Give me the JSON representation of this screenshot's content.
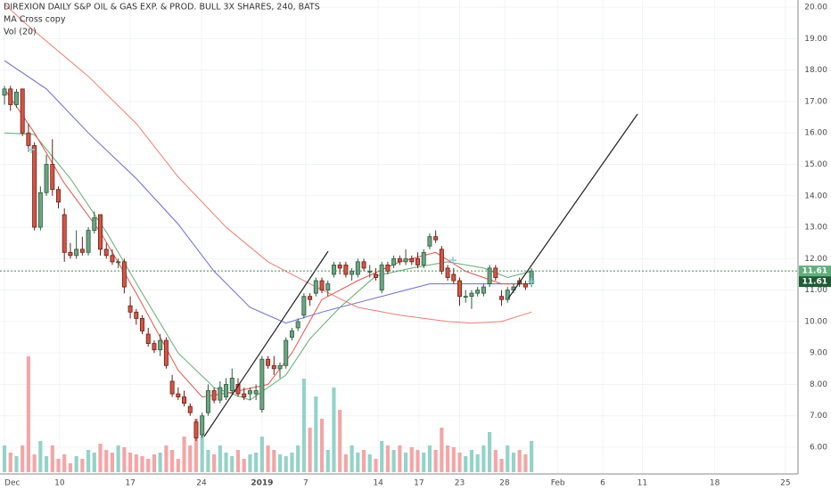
{
  "chart_data": {
    "type": "candlestick",
    "title": "DIREXION DAILY S&P OIL & GAS EXP. & PROD. BULL 3X SHARES, 240, BATS",
    "indicators": [
      "MA Cross copy",
      "Vol (20)"
    ],
    "xlim": [
      -0.75,
      132.5
    ],
    "xticks": [
      {
        "value": 0,
        "label": "Dec"
      },
      {
        "value": 9.2,
        "label": "10"
      },
      {
        "value": 21,
        "label": "17"
      },
      {
        "value": 32.9,
        "label": "24"
      },
      {
        "value": 43,
        "label": "2019"
      },
      {
        "value": 50.3,
        "label": "7"
      },
      {
        "value": 62.4,
        "label": "14"
      },
      {
        "value": 69.2,
        "label": "17"
      },
      {
        "value": 76,
        "label": "23"
      },
      {
        "value": 83.5,
        "label": "28"
      },
      {
        "value": 92.4,
        "label": "Feb"
      },
      {
        "value": 99.9,
        "label": "6"
      },
      {
        "value": 106.5,
        "label": "11"
      },
      {
        "value": 118.6,
        "label": "18"
      },
      {
        "value": 130.4,
        "label": "25"
      }
    ],
    "ylim": [
      5.15,
      20.23
    ],
    "yticks": [
      {
        "value": 6,
        "label": "6.00"
      },
      {
        "value": 7,
        "label": "7.00"
      },
      {
        "value": 8,
        "label": "8.00"
      },
      {
        "value": 9,
        "label": "9.00"
      },
      {
        "value": 10,
        "label": "10.00"
      },
      {
        "value": 11,
        "label": "11.00"
      },
      {
        "value": 12,
        "label": "12.00"
      },
      {
        "value": 13,
        "label": "13.00"
      },
      {
        "value": 14,
        "label": "14.00"
      },
      {
        "value": 15,
        "label": "15.00"
      },
      {
        "value": 16,
        "label": "16.00"
      },
      {
        "value": 17,
        "label": "17.00"
      },
      {
        "value": 18,
        "label": "18.00"
      },
      {
        "value": 19,
        "label": "19.00"
      },
      {
        "value": 20,
        "label": "20.00"
      }
    ],
    "grid": true,
    "up_color": "#6ba583",
    "down_color": "#d75442",
    "open": [
      17.2,
      17.4,
      16.9,
      17.4,
      16.0,
      15.6,
      13.0,
      14.1,
      15.0,
      14.2,
      13.4,
      12.2,
      12.1,
      12.3,
      12.2,
      12.9,
      13.4,
      12.3,
      12.1,
      11.9,
      11.9,
      10.5,
      10.3,
      10.1,
      9.6,
      9.3,
      9.1,
      9.4,
      8.1,
      7.7,
      7.6,
      7.3,
      6.8,
      6.4,
      7.1,
      7.8,
      7.5,
      7.6,
      7.8,
      8.0,
      7.7,
      7.7,
      7.7,
      7.2,
      8.8,
      8.6,
      8.5,
      8.6,
      9.5,
      9.8,
      10.2,
      10.8,
      10.9,
      11.3,
      11.0,
      11.5,
      11.8,
      11.8,
      11.5,
      11.5,
      11.9,
      11.6,
      11.5,
      11.0,
      11.8,
      11.8,
      12.0,
      11.9,
      12.0,
      12.0,
      11.8,
      12.4,
      12.7,
      12.3,
      11.7,
      11.5,
      11.3,
      10.8,
      10.8,
      10.9,
      10.9,
      11.2,
      11.7,
      10.8,
      10.7,
      11.0,
      11.3,
      11.2,
      11.2
    ],
    "high": [
      17.5,
      17.5,
      17.4,
      17.4,
      16.3,
      15.7,
      14.3,
      15.3,
      15.8,
      14.3,
      13.6,
      12.5,
      12.9,
      12.7,
      13.0,
      13.5,
      13.4,
      12.5,
      12.3,
      12.0,
      12.0,
      10.8,
      10.4,
      10.2,
      9.8,
      9.4,
      9.6,
      9.5,
      8.3,
      7.9,
      7.8,
      7.4,
      6.9,
      7.1,
      8.0,
      7.9,
      8.1,
      8.2,
      8.5,
      8.2,
      7.9,
      7.9,
      8.0,
      8.9,
      8.9,
      8.9,
      8.7,
      9.5,
      9.8,
      10.1,
      10.9,
      10.9,
      11.4,
      11.4,
      11.3,
      11.9,
      11.9,
      11.9,
      11.7,
      12.0,
      12.0,
      11.8,
      11.7,
      11.9,
      11.9,
      12.1,
      12.1,
      12.3,
      12.1,
      12.2,
      12.3,
      12.8,
      12.9,
      12.4,
      11.8,
      11.7,
      11.4,
      11.0,
      11.0,
      11.1,
      11.2,
      11.8,
      11.8,
      11.0,
      11.1,
      11.2,
      11.4,
      11.3,
      11.7
    ],
    "low": [
      16.9,
      16.7,
      16.8,
      15.9,
      15.4,
      12.9,
      12.9,
      14.0,
      14.0,
      13.6,
      11.9,
      12.0,
      12.0,
      12.1,
      12.1,
      12.8,
      12.1,
      12.0,
      11.8,
      11.7,
      10.9,
      10.1,
      9.9,
      9.6,
      9.2,
      9.0,
      8.9,
      8.5,
      7.6,
      7.5,
      7.3,
      7.0,
      6.2,
      6.3,
      7.0,
      7.4,
      7.4,
      7.5,
      7.7,
      7.6,
      7.5,
      7.5,
      7.5,
      7.1,
      8.5,
      8.3,
      8.2,
      8.5,
      9.4,
      9.7,
      10.1,
      10.5,
      10.8,
      10.9,
      10.8,
      11.4,
      11.5,
      11.4,
      11.3,
      11.4,
      11.6,
      11.4,
      11.3,
      10.9,
      11.5,
      11.7,
      11.8,
      11.8,
      11.8,
      11.7,
      11.7,
      12.3,
      12.5,
      11.5,
      11.3,
      11.2,
      10.5,
      10.6,
      10.4,
      10.8,
      10.8,
      11.1,
      11.3,
      10.5,
      10.6,
      10.9,
      11.1,
      11.0,
      11.1
    ],
    "close": [
      17.4,
      16.9,
      17.3,
      16.0,
      15.6,
      13.0,
      14.1,
      15.0,
      14.2,
      13.8,
      12.2,
      12.1,
      12.3,
      12.2,
      12.9,
      13.3,
      12.3,
      12.1,
      11.9,
      11.9,
      11.1,
      10.3,
      10.1,
      9.7,
      9.3,
      9.1,
      9.4,
      8.6,
      7.7,
      7.6,
      7.4,
      7.1,
      6.3,
      7.0,
      7.8,
      7.5,
      7.9,
      8.0,
      8.2,
      7.7,
      7.6,
      7.8,
      7.8,
      8.8,
      8.6,
      8.5,
      8.6,
      9.4,
      9.7,
      10.0,
      10.8,
      10.7,
      11.3,
      11.0,
      11.2,
      11.8,
      11.7,
      11.5,
      11.6,
      11.9,
      11.7,
      11.6,
      11.4,
      11.8,
      11.6,
      12.0,
      11.9,
      12.0,
      11.9,
      11.8,
      12.2,
      12.7,
      12.6,
      11.6,
      11.4,
      11.3,
      10.8,
      10.8,
      10.9,
      11.0,
      11.1,
      11.7,
      11.4,
      10.7,
      11.0,
      11.1,
      11.2,
      11.1,
      11.61
    ],
    "volume": [
      30,
      22,
      18,
      30,
      130,
      20,
      35,
      18,
      30,
      15,
      20,
      10,
      18,
      15,
      25,
      22,
      32,
      25,
      22,
      30,
      28,
      22,
      20,
      18,
      15,
      20,
      22,
      30,
      25,
      15,
      40,
      30,
      60,
      50,
      25,
      20,
      30,
      22,
      18,
      25,
      15,
      20,
      22,
      40,
      30,
      25,
      20,
      18,
      22,
      30,
      105,
      50,
      85,
      60,
      25,
      95,
      70,
      20,
      30,
      22,
      25,
      20,
      15,
      35,
      30,
      25,
      30,
      22,
      28,
      25,
      22,
      30,
      25,
      50,
      30,
      28,
      22,
      18,
      25,
      20,
      30,
      45,
      25,
      15,
      30,
      22,
      25,
      20,
      35
    ],
    "vlim": [
      0,
      150
    ],
    "volume_up_color": "#93d3c9",
    "volume_down_color": "#f5a5a5",
    "lines": [
      {
        "color": "#6a6ad8",
        "x": [
          0,
          7,
          14,
          22,
          29,
          35,
          41,
          47,
          53,
          59,
          65,
          71,
          77,
          83,
          88
        ],
        "values": [
          18.3,
          17.4,
          16.0,
          14.55,
          13.1,
          11.6,
          10.45,
          9.95,
          10.3,
          10.6,
          10.9,
          11.2,
          11.2,
          11.2,
          11.2
        ]
      },
      {
        "color": "#f27d6e",
        "x": [
          0,
          4,
          14,
          22,
          29,
          37,
          44,
          51,
          59,
          66,
          74,
          78,
          83,
          88
        ],
        "values": [
          20.1,
          19.4,
          17.8,
          16.3,
          14.6,
          13.0,
          11.9,
          11.2,
          10.45,
          10.2,
          10.0,
          9.95,
          10.0,
          10.3
        ]
      },
      {
        "color": "#5fae6f",
        "x": [
          0,
          5,
          11,
          17,
          23,
          29,
          35,
          41,
          47,
          51,
          56,
          62,
          68,
          74,
          80,
          84,
          88
        ],
        "values": [
          16.0,
          15.95,
          14.55,
          12.85,
          10.9,
          9.0,
          7.9,
          7.5,
          8.3,
          9.45,
          10.45,
          11.45,
          11.7,
          11.9,
          11.7,
          11.4,
          11.6
        ]
      },
      {
        "color": "#e8544a",
        "x": [
          0,
          5,
          10,
          16,
          22,
          29,
          33,
          38,
          44,
          48,
          53,
          59,
          66,
          72,
          77,
          83,
          88
        ],
        "values": [
          17.4,
          16.0,
          14.4,
          12.85,
          10.9,
          8.45,
          7.6,
          7.75,
          8.0,
          9.0,
          10.7,
          11.3,
          11.9,
          12.2,
          11.6,
          11.2,
          11.2
        ]
      }
    ],
    "last_value": 11.61,
    "last_color": "#3c8c55"
  }
}
